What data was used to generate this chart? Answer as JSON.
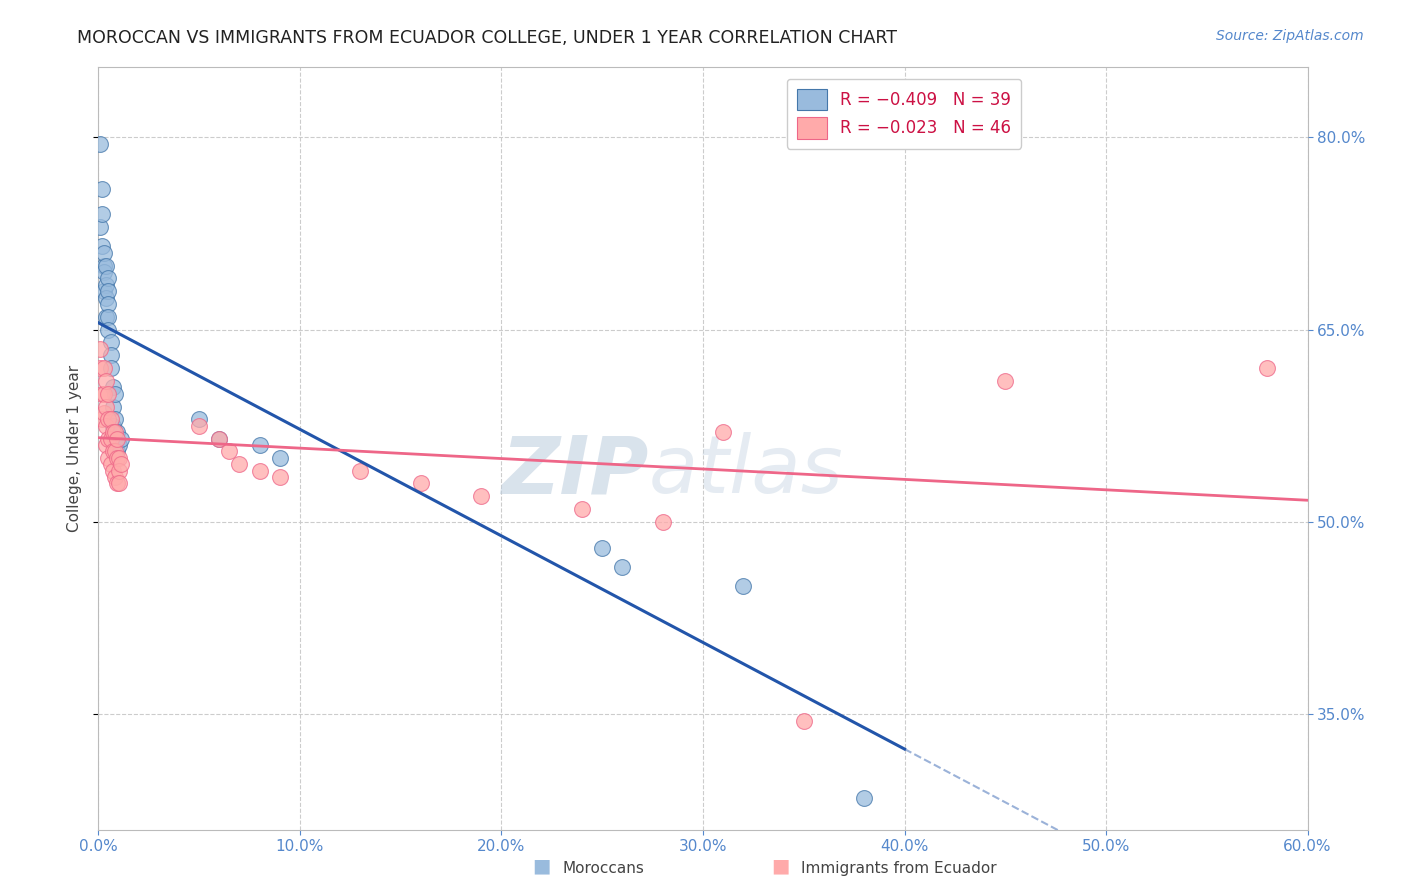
{
  "title": "MOROCCAN VS IMMIGRANTS FROM ECUADOR COLLEGE, UNDER 1 YEAR CORRELATION CHART",
  "source": "Source: ZipAtlas.com",
  "ylabel": "College, Under 1 year",
  "legend_blue_r": "R = −0.409",
  "legend_blue_n": "N = 39",
  "legend_pink_r": "R = −0.023",
  "legend_pink_n": "N = 46",
  "blue_color": "#99BBDD",
  "pink_color": "#FFAAAA",
  "blue_edge_color": "#4477AA",
  "pink_edge_color": "#EE6688",
  "trend_blue_color": "#2255AA",
  "trend_pink_color": "#EE6688",
  "watermark_zip": "ZIP",
  "watermark_atlas": "atlas",
  "x_min": 0.0,
  "x_max": 0.6,
  "y_min": 0.26,
  "y_max": 0.855,
  "right_yticks": [
    0.35,
    0.5,
    0.65,
    0.8
  ],
  "xticks": [
    0.0,
    0.1,
    0.2,
    0.3,
    0.4,
    0.5,
    0.6
  ],
  "blue_x": [
    0.001,
    0.001,
    0.002,
    0.002,
    0.002,
    0.003,
    0.003,
    0.003,
    0.003,
    0.004,
    0.004,
    0.004,
    0.004,
    0.005,
    0.005,
    0.005,
    0.005,
    0.005,
    0.006,
    0.006,
    0.006,
    0.007,
    0.007,
    0.007,
    0.008,
    0.008,
    0.008,
    0.009,
    0.009,
    0.01,
    0.011,
    0.05,
    0.06,
    0.08,
    0.09,
    0.25,
    0.26,
    0.32,
    0.38
  ],
  "blue_y": [
    0.795,
    0.73,
    0.76,
    0.74,
    0.715,
    0.7,
    0.71,
    0.695,
    0.68,
    0.7,
    0.685,
    0.675,
    0.66,
    0.69,
    0.68,
    0.67,
    0.66,
    0.65,
    0.64,
    0.63,
    0.62,
    0.605,
    0.59,
    0.575,
    0.6,
    0.58,
    0.565,
    0.57,
    0.555,
    0.56,
    0.565,
    0.58,
    0.565,
    0.56,
    0.55,
    0.48,
    0.465,
    0.45,
    0.285
  ],
  "pink_x": [
    0.001,
    0.001,
    0.002,
    0.002,
    0.003,
    0.003,
    0.003,
    0.004,
    0.004,
    0.004,
    0.004,
    0.005,
    0.005,
    0.005,
    0.005,
    0.006,
    0.006,
    0.006,
    0.007,
    0.007,
    0.007,
    0.008,
    0.008,
    0.008,
    0.009,
    0.009,
    0.009,
    0.01,
    0.01,
    0.01,
    0.011,
    0.05,
    0.06,
    0.065,
    0.07,
    0.08,
    0.09,
    0.13,
    0.16,
    0.19,
    0.24,
    0.28,
    0.31,
    0.35,
    0.45,
    0.58
  ],
  "pink_y": [
    0.635,
    0.62,
    0.6,
    0.58,
    0.62,
    0.6,
    0.585,
    0.61,
    0.59,
    0.575,
    0.56,
    0.6,
    0.58,
    0.565,
    0.55,
    0.58,
    0.565,
    0.545,
    0.57,
    0.555,
    0.54,
    0.57,
    0.555,
    0.535,
    0.565,
    0.55,
    0.53,
    0.55,
    0.54,
    0.53,
    0.545,
    0.575,
    0.565,
    0.555,
    0.545,
    0.54,
    0.535,
    0.54,
    0.53,
    0.52,
    0.51,
    0.5,
    0.57,
    0.345,
    0.61,
    0.62
  ],
  "axis_color": "#5588CC",
  "grid_color": "#CCCCCC",
  "title_fontsize": 12.5,
  "source_fontsize": 10,
  "label_fontsize": 11,
  "tick_fontsize": 11,
  "legend_fontsize": 12
}
